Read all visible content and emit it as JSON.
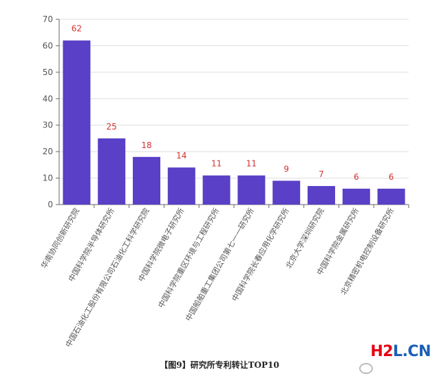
{
  "chart_data": {
    "type": "bar",
    "categories": [
      "华南协同创新研究院",
      "中国科学院半导体研究所",
      "中国石油化工股份有限公司石油化工科学研究院",
      "中国科学院微电子研究所",
      "中国科学院重区环境与工程研究所",
      "中国船舶重工集团公司第七一一研究所",
      "中国科学院长春应用化学研究所",
      "北京大学深圳研究院",
      "中国科学院金属研究所",
      "北京精密机电控制设备研究所"
    ],
    "values": [
      62,
      25,
      18,
      14,
      11,
      11,
      9,
      7,
      6,
      6
    ],
    "ylim": [
      0,
      70
    ],
    "yticks": [
      0,
      10,
      20,
      30,
      40,
      50,
      60,
      70
    ],
    "grid": true,
    "colors": {
      "bar": "#5940c6",
      "data_label": "#d23030",
      "axis": "#666666",
      "grid": "#dddddd"
    }
  },
  "caption": "【图9】研究所专利转让TOP10",
  "watermark": {
    "h": "H",
    "two": "2",
    "l": "L",
    "cn": ".CN"
  }
}
